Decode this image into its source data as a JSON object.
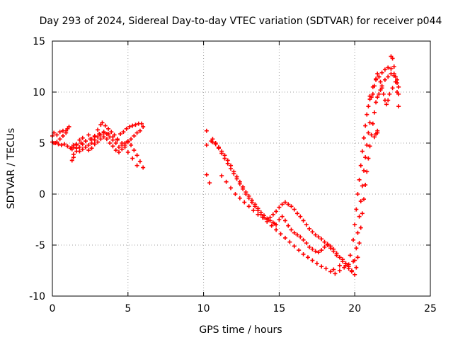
{
  "chart_data": {
    "type": "scatter",
    "title": "Day 293 of 2024, Sidereal Day-to-day VTEC variation (SDTVAR) for receiver p044",
    "xlabel": "GPS time / hours",
    "ylabel": "SDTVAR / TECUs",
    "xlim": [
      0,
      25
    ],
    "ylim": [
      -10,
      15
    ],
    "xticks": [
      0,
      5,
      10,
      15,
      20,
      25
    ],
    "yticks": [
      -10,
      -5,
      0,
      5,
      10,
      15
    ],
    "grid": true,
    "marker": "+",
    "color": "#ff0000",
    "series": [
      {
        "name": "p044",
        "x": [
          0.0,
          0.1,
          0.3,
          0.5,
          0.7,
          0.9,
          1.0,
          1.1,
          0.9,
          0.7,
          0.5,
          0.3,
          0.1,
          0.0,
          0.2,
          0.4,
          0.6,
          0.8,
          1.0,
          1.2,
          1.4,
          1.6,
          1.8,
          2.0,
          2.2,
          2.4,
          2.6,
          2.8,
          3.0,
          3.2,
          3.3,
          3.5,
          3.7,
          3.9,
          4.1,
          4.3,
          4.5,
          4.7,
          4.9,
          5.1,
          5.3,
          5.5,
          5.7,
          5.9,
          6.0,
          5.8,
          5.6,
          5.4,
          5.2,
          5.0,
          4.8,
          4.6,
          4.4,
          4.2,
          4.0,
          3.8,
          3.6,
          3.4,
          3.2,
          3.0,
          2.8,
          2.6,
          2.4,
          2.2,
          2.0,
          1.8,
          1.6,
          1.4,
          1.3,
          1.4,
          1.6,
          1.8,
          2.0,
          2.2,
          2.4,
          2.6,
          2.8,
          3.0,
          3.2,
          3.4,
          3.6,
          3.8,
          4.0,
          4.2,
          4.4,
          4.6,
          4.8,
          5.0,
          5.2,
          5.4,
          5.6,
          5.8,
          6.0,
          5.6,
          5.3,
          5.0,
          4.8,
          4.6,
          4.3,
          4.0,
          3.7,
          3.4,
          3.1,
          2.8,
          2.5,
          2.2,
          1.9,
          1.6,
          1.3,
          1.4,
          1.3,
          10.2,
          10.2,
          10.2,
          10.4,
          10.5,
          10.6,
          10.8,
          11.0,
          11.2,
          11.4,
          11.6,
          11.8,
          12.0,
          12.2,
          12.4,
          12.6,
          12.8,
          13.0,
          13.2,
          13.4,
          13.6,
          13.8,
          14.0,
          14.2,
          14.4,
          14.6,
          14.7,
          14.8,
          15.0,
          15.2,
          15.4,
          15.6,
          15.8,
          16.0,
          16.2,
          16.4,
          16.6,
          16.8,
          17.0,
          17.2,
          17.4,
          17.6,
          17.8,
          18.0,
          18.2,
          18.4,
          18.6,
          18.8,
          19.0,
          19.2,
          19.4,
          19.6,
          19.8,
          20.0,
          19.8,
          19.6,
          19.4,
          19.2,
          19.0,
          18.8,
          18.6,
          18.4,
          18.2,
          18.0,
          17.8,
          17.6,
          17.4,
          17.2,
          17.0,
          16.8,
          16.6,
          16.4,
          16.2,
          16.0,
          15.8,
          15.6,
          15.4,
          15.2,
          15.0,
          14.8,
          14.6,
          14.4,
          14.2,
          14.0,
          13.8,
          13.6,
          13.4,
          13.2,
          13.0,
          12.8,
          12.6,
          12.4,
          12.2,
          12.0,
          11.8,
          11.6,
          11.4,
          11.2,
          11.0,
          10.8,
          10.6,
          11.2,
          11.5,
          11.8,
          12.1,
          12.4,
          12.7,
          13.0,
          13.3,
          13.6,
          13.9,
          14.2,
          14.5,
          14.8,
          15.1,
          15.4,
          15.7,
          16.0,
          16.3,
          16.6,
          16.9,
          17.2,
          17.5,
          17.8,
          18.1,
          18.4,
          18.7,
          19.0,
          19.3,
          19.6,
          19.9,
          18.6,
          19.0,
          19.4,
          19.7,
          19.9,
          20.0,
          20.1,
          20.2,
          20.3,
          20.4,
          20.5,
          20.6,
          20.7,
          20.8,
          20.9,
          21.0,
          21.1,
          21.2,
          21.3,
          21.4,
          21.6,
          21.8,
          22.0,
          22.2,
          22.4,
          22.6,
          22.8,
          22.9,
          22.8,
          22.7,
          22.6,
          22.5,
          22.4,
          20.1,
          20.2,
          20.3,
          20.4,
          20.5,
          20.6,
          20.7,
          20.8,
          20.9,
          21.0,
          21.1,
          21.2,
          21.3,
          21.4,
          21.5,
          21.6,
          21.7,
          21.8,
          22.0,
          22.2,
          22.4,
          22.6,
          22.8,
          22.9,
          20.0,
          20.1,
          20.2,
          20.3,
          20.4,
          20.5,
          20.6,
          20.7,
          20.8,
          20.9,
          21.0,
          21.0,
          21.2,
          21.4,
          21.5,
          21.6,
          21.7,
          21.8,
          21.9,
          22.0,
          22.1,
          22.2,
          22.3,
          22.5,
          22.7,
          22.9,
          21.3,
          21.4,
          21.5,
          21.5
        ],
        "y": [
          5.7,
          6.0,
          5.8,
          6.1,
          6.2,
          6.0,
          6.4,
          6.6,
          6.2,
          5.7,
          5.4,
          5.1,
          5.0,
          5.1,
          5.0,
          4.9,
          4.8,
          4.9,
          4.7,
          4.5,
          4.6,
          4.9,
          5.3,
          5.5,
          5.2,
          5.8,
          5.4,
          5.7,
          6.3,
          6.8,
          7.0,
          6.7,
          6.4,
          6.1,
          5.8,
          5.4,
          5.9,
          6.1,
          6.4,
          6.6,
          6.7,
          6.8,
          6.9,
          6.9,
          6.6,
          6.2,
          6.0,
          5.7,
          5.4,
          5.2,
          5.0,
          4.8,
          4.6,
          5.0,
          5.3,
          5.6,
          5.9,
          6.0,
          5.8,
          5.6,
          5.3,
          5.0,
          4.8,
          4.6,
          4.4,
          4.2,
          4.5,
          4.8,
          4.4,
          3.9,
          4.2,
          4.6,
          4.9,
          4.6,
          4.3,
          4.5,
          4.9,
          5.1,
          5.4,
          5.6,
          5.4,
          5.0,
          4.7,
          4.3,
          4.1,
          4.4,
          4.8,
          5.1,
          4.8,
          4.3,
          3.8,
          3.2,
          2.6,
          2.8,
          3.5,
          4.1,
          4.6,
          5.0,
          5.3,
          5.6,
          5.9,
          6.1,
          5.9,
          5.6,
          5.4,
          5.2,
          5.0,
          4.8,
          4.6,
          3.6,
          3.3,
          6.2,
          4.8,
          1.9,
          1.1,
          5.2,
          5.1,
          4.9,
          4.6,
          4.2,
          3.8,
          3.3,
          2.8,
          2.2,
          1.7,
          1.2,
          0.7,
          0.2,
          -0.2,
          -0.6,
          -1.0,
          -1.4,
          -1.8,
          -2.1,
          -2.4,
          -2.6,
          -2.8,
          -2.9,
          -3.0,
          -2.5,
          -2.2,
          -2.6,
          -3.1,
          -3.5,
          -3.8,
          -4.0,
          -4.2,
          -4.5,
          -4.8,
          -5.2,
          -5.4,
          -5.6,
          -5.7,
          -5.5,
          -5.2,
          -4.9,
          -5.1,
          -5.4,
          -5.8,
          -6.2,
          -6.6,
          -7.0,
          -7.3,
          -7.6,
          -7.9,
          -7.5,
          -7.1,
          -6.8,
          -6.4,
          -6.2,
          -6.0,
          -5.6,
          -5.3,
          -5.0,
          -4.7,
          -4.4,
          -4.2,
          -4.0,
          -3.7,
          -3.4,
          -3.0,
          -2.6,
          -2.2,
          -1.9,
          -1.5,
          -1.2,
          -1.0,
          -0.8,
          -1.0,
          -1.3,
          -1.7,
          -2.0,
          -2.3,
          -2.5,
          -2.3,
          -2.0,
          -1.6,
          -1.2,
          -0.8,
          -0.4,
          0.0,
          0.5,
          1.0,
          1.5,
          2.0,
          2.5,
          3.0,
          3.5,
          4.0,
          4.5,
          5.0,
          5.4,
          1.8,
          1.2,
          0.6,
          0.0,
          -0.4,
          -0.8,
          -1.2,
          -1.6,
          -2.0,
          -2.3,
          -2.7,
          -3.1,
          -3.5,
          -3.9,
          -4.3,
          -4.7,
          -5.1,
          -5.5,
          -5.9,
          -6.2,
          -6.5,
          -6.8,
          -7.1,
          -7.3,
          -7.6,
          -7.8,
          -7.5,
          -7.2,
          -6.9,
          -6.6,
          -7.4,
          -7.0,
          -6.8,
          -6.0,
          -4.5,
          -3.0,
          -1.5,
          0.0,
          1.4,
          2.8,
          4.2,
          5.5,
          6.7,
          7.8,
          8.6,
          9.3,
          9.5,
          9.8,
          10.6,
          11.2,
          11.5,
          11.9,
          12.2,
          12.4,
          12.3,
          11.8,
          11.2,
          10.5,
          10.0,
          11.5,
          12.5,
          13.3,
          13.5,
          -7.2,
          -6.2,
          -4.8,
          -3.3,
          -1.9,
          -0.5,
          0.9,
          2.2,
          3.5,
          4.7,
          5.8,
          6.9,
          8.0,
          9.0,
          9.5,
          9.8,
          10.2,
          10.6,
          11.2,
          11.5,
          11.8,
          11.6,
          10.9,
          9.8,
          -6.5,
          -5.3,
          -3.8,
          -2.2,
          -0.7,
          0.8,
          2.3,
          3.6,
          4.8,
          6.0,
          7.0,
          9.6,
          10.5,
          11.3,
          11.8,
          11.5,
          11.0,
          10.4,
          9.8,
          9.2,
          8.8,
          9.2,
          9.8,
          10.4,
          11.0,
          8.6,
          5.6,
          5.9,
          6.2,
          6.0
        ]
      }
    ]
  }
}
